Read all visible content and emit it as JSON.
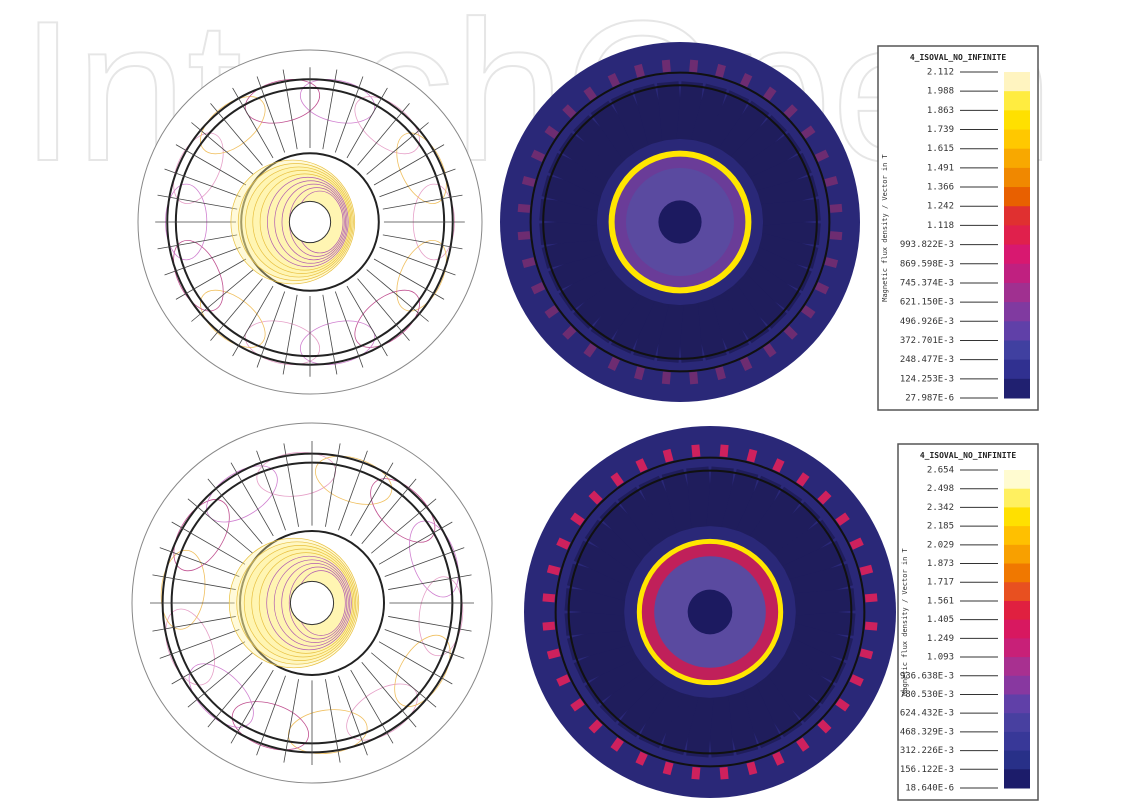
{
  "watermark": "IntechOpen",
  "legends": [
    {
      "title": "4_ISOVAL_NO_INFINITE",
      "axis_label": "Magnetic flux density / Vector in T",
      "labels": [
        "2.112",
        "1.988",
        "1.863",
        "1.739",
        "1.615",
        "1.491",
        "1.366",
        "1.242",
        "1.118",
        "993.822E-3",
        "869.598E-3",
        "745.374E-3",
        "621.150E-3",
        "496.926E-3",
        "372.701E-3",
        "248.477E-3",
        "124.253E-3",
        "27.987E-6"
      ]
    },
    {
      "title": "4_ISOVAL_NO_INFINITE",
      "axis_label": "Magnetic flux density / Vector in T",
      "labels": [
        "2.654",
        "2.498",
        "2.342",
        "2.185",
        "2.029",
        "1.873",
        "1.717",
        "1.561",
        "1.405",
        "1.249",
        "1.093",
        "936.638E-3",
        "780.530E-3",
        "624.432E-3",
        "468.329E-3",
        "312.226E-3",
        "156.122E-3",
        "18.640E-6"
      ]
    }
  ]
}
